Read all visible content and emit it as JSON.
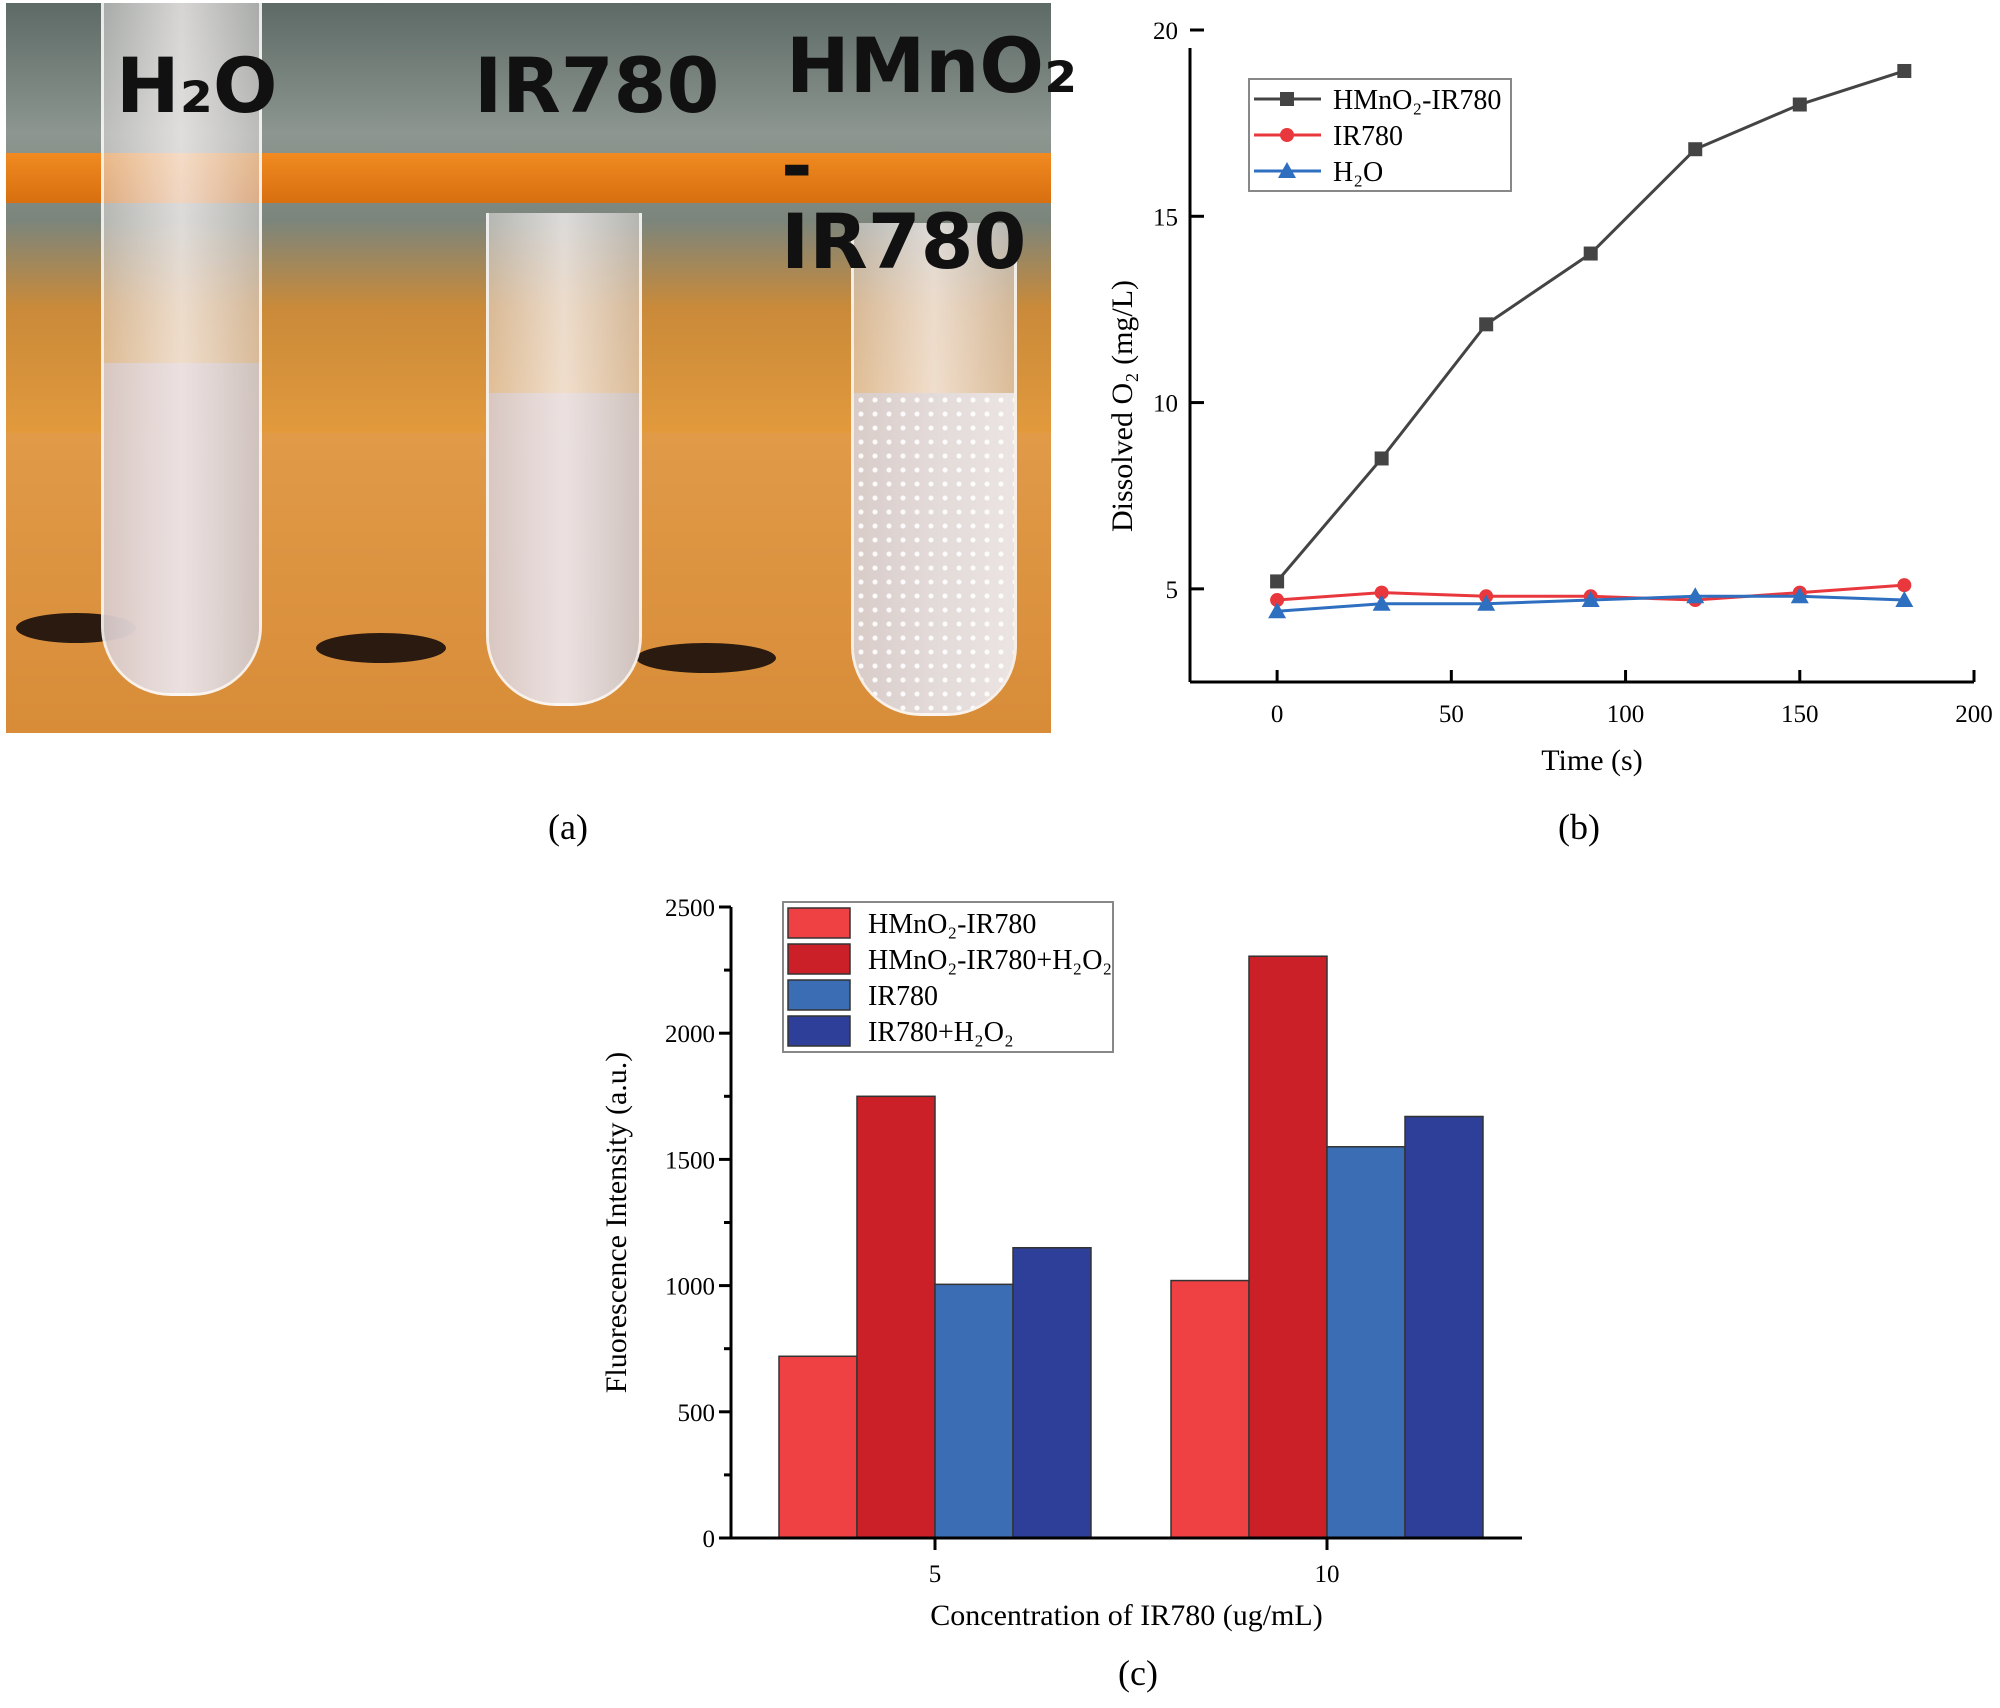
{
  "panel_a": {
    "caption": "(a)",
    "tube_labels": [
      "H₂O",
      "IR780",
      "HMnO₂",
      "-IR780"
    ]
  },
  "panel_b": {
    "caption": "(b)"
  },
  "panel_c": {
    "caption": "(c)"
  },
  "chart_data": [
    {
      "type": "line",
      "xlabel": "Time (s)",
      "ylabel": "Dissolved O₂ (mg/L)",
      "xlim": [
        -25,
        200
      ],
      "ylim": [
        2.5,
        20
      ],
      "xticks": [
        0,
        50,
        100,
        150,
        200
      ],
      "yticks": [
        5,
        10,
        15,
        20
      ],
      "grid": false,
      "legend": "top-left",
      "x": [
        0,
        30,
        60,
        90,
        120,
        150,
        180
      ],
      "series": [
        {
          "name": "HMnO₂-IR780",
          "marker": "square",
          "color": "#444444",
          "values": [
            5.2,
            8.5,
            12.1,
            14.0,
            16.8,
            18.0,
            18.9
          ]
        },
        {
          "name": "IR780",
          "marker": "circle",
          "color": "#e8383d",
          "values": [
            4.7,
            4.9,
            4.8,
            4.8,
            4.7,
            4.9,
            5.1
          ]
        },
        {
          "name": "H₂O",
          "marker": "triangle",
          "color": "#2f6fc0",
          "values": [
            4.4,
            4.6,
            4.6,
            4.7,
            4.8,
            4.8,
            4.7
          ]
        }
      ]
    },
    {
      "type": "bar",
      "xlabel": "Concentration of IR780 (ug/mL)",
      "ylabel": "Fluorescence Intensity (a.u.)",
      "ylim": [
        0,
        2500
      ],
      "yticks": [
        0,
        500,
        1000,
        1500,
        2000,
        2500
      ],
      "categories": [
        "5",
        "10"
      ],
      "grid": false,
      "legend": "top-left",
      "series": [
        {
          "name": "HMnO₂-IR780",
          "color": "#ef4144",
          "values": [
            720,
            1020
          ]
        },
        {
          "name": "HMnO₂-IR780+H₂O₂",
          "color": "#cc2029",
          "values": [
            1750,
            2305
          ]
        },
        {
          "name": "IR780",
          "color": "#3b6db5",
          "values": [
            1005,
            1550
          ]
        },
        {
          "name": "IR780+H₂O₂",
          "color": "#2d3f98",
          "values": [
            1150,
            1670
          ]
        }
      ]
    }
  ]
}
